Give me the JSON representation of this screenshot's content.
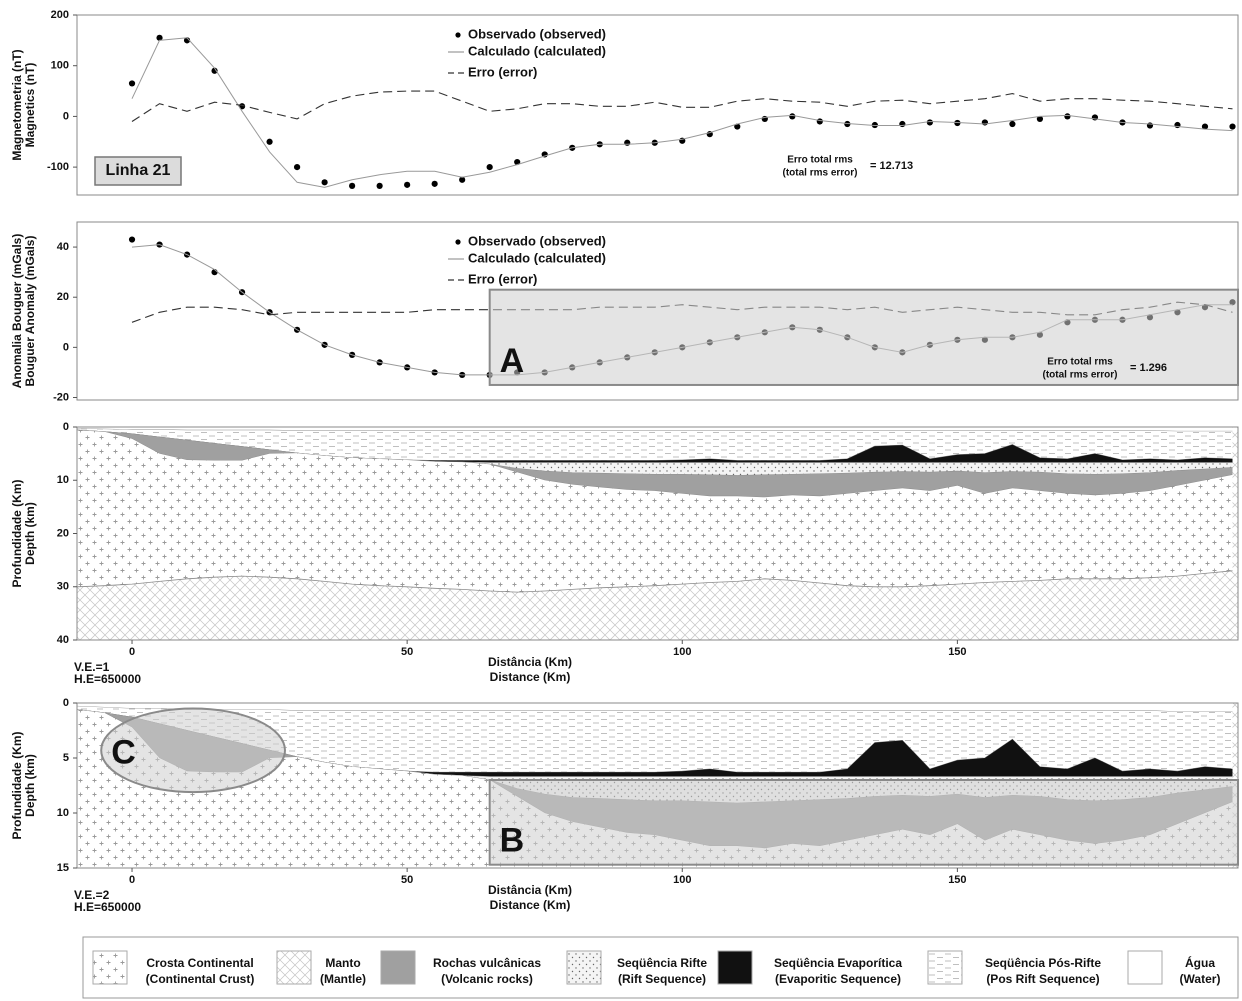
{
  "chart_data": [
    {
      "type": "line",
      "ylabel": [
        "Magnetometria (nT)",
        "Magnetics (nT)"
      ],
      "xlim": [
        -10,
        201
      ],
      "ylim": [
        -155,
        200
      ],
      "yticks": [
        -100,
        0,
        100,
        200
      ],
      "x": [
        0,
        5,
        10,
        15,
        20,
        25,
        30,
        35,
        40,
        45,
        50,
        55,
        60,
        65,
        70,
        75,
        80,
        85,
        90,
        95,
        100,
        105,
        110,
        115,
        120,
        125,
        130,
        135,
        140,
        145,
        150,
        155,
        160,
        165,
        170,
        175,
        180,
        185,
        190,
        195,
        200
      ],
      "series": [
        {
          "name": "Observado (observed)",
          "style": "dots",
          "color": "#000000",
          "values": [
            65,
            155,
            150,
            90,
            20,
            -50,
            -100,
            -130,
            -137,
            -137,
            -135,
            -133,
            -125,
            -100,
            -90,
            -75,
            -62,
            -55,
            -52,
            -52,
            -48,
            -35,
            -20,
            -5,
            0,
            -10,
            -15,
            -17,
            -15,
            -12,
            -13,
            -12,
            -15,
            -5,
            0,
            -2,
            -12,
            -18,
            -17,
            -20,
            -20
          ]
        },
        {
          "name": "Calculado (calculated)",
          "style": "solid",
          "color": "#999999",
          "values": [
            35,
            150,
            155,
            95,
            10,
            -70,
            -130,
            -140,
            -125,
            -115,
            -108,
            -108,
            -120,
            -110,
            -95,
            -78,
            -62,
            -55,
            -55,
            -52,
            -45,
            -32,
            -15,
            -2,
            2,
            -8,
            -14,
            -18,
            -18,
            -10,
            -12,
            -15,
            -8,
            0,
            2,
            -5,
            -12,
            -15,
            -20,
            -25,
            -28
          ]
        },
        {
          "name": "Erro (error)",
          "style": "dashed",
          "color": "#333333",
          "values": [
            -10,
            25,
            10,
            28,
            22,
            8,
            -5,
            25,
            40,
            48,
            50,
            50,
            30,
            10,
            15,
            25,
            25,
            20,
            20,
            28,
            18,
            18,
            30,
            35,
            30,
            28,
            20,
            30,
            32,
            25,
            30,
            35,
            45,
            30,
            35,
            35,
            32,
            30,
            25,
            20,
            15
          ]
        }
      ],
      "label_box": "Linha 21",
      "rms": {
        "lines": [
          "Erro total rms",
          "(total rms error)"
        ],
        "value": 12.713,
        "value_label": "= 12.713"
      }
    },
    {
      "type": "line",
      "ylabel": [
        "Anomalia Bouguer (mGals)",
        "Bouguer Anomaly (mGals)"
      ],
      "xlim": [
        -10,
        201
      ],
      "ylim": [
        -21,
        50
      ],
      "yticks": [
        -20,
        0,
        20,
        40
      ],
      "x": [
        0,
        5,
        10,
        15,
        20,
        25,
        30,
        35,
        40,
        45,
        50,
        55,
        60,
        65,
        70,
        75,
        80,
        85,
        90,
        95,
        100,
        105,
        110,
        115,
        120,
        125,
        130,
        135,
        140,
        145,
        150,
        155,
        160,
        165,
        170,
        175,
        180,
        185,
        190,
        195,
        200
      ],
      "series": [
        {
          "name": "Observado (observed)",
          "style": "dots",
          "color": "#000000",
          "values": [
            43,
            41,
            37,
            30,
            22,
            14,
            7,
            1,
            -3,
            -6,
            -8,
            -10,
            -11,
            -11,
            -10,
            -10,
            -8,
            -6,
            -4,
            -2,
            0,
            2,
            4,
            6,
            8,
            7,
            4,
            0,
            -2,
            1,
            3,
            3,
            4,
            5,
            10,
            11,
            11,
            12,
            14,
            16,
            18
          ]
        },
        {
          "name": "Calculado (calculated)",
          "style": "solid",
          "color": "#999999",
          "values": [
            40,
            41,
            37,
            31,
            22,
            14,
            7,
            1,
            -3,
            -6,
            -8,
            -10,
            -11,
            -11,
            -11,
            -10,
            -8,
            -6,
            -4,
            -2,
            0,
            2,
            4,
            6,
            8,
            7,
            4,
            0,
            -2,
            1,
            3,
            4,
            4,
            6,
            11,
            11,
            11,
            13,
            15,
            17,
            17
          ]
        },
        {
          "name": "Erro (error)",
          "style": "dashed",
          "color": "#333333",
          "values": [
            10,
            14,
            16,
            16,
            15,
            13,
            14,
            14,
            14,
            14,
            14,
            15,
            15,
            15,
            15,
            15,
            15,
            16,
            16,
            16,
            17,
            16,
            15,
            16,
            16,
            16,
            15,
            16,
            14,
            15,
            16,
            15,
            14,
            14,
            13,
            13,
            15,
            16,
            18,
            17,
            14
          ]
        }
      ],
      "regions": [
        {
          "label": "A",
          "shape": "box",
          "x": [
            65,
            201
          ],
          "y": [
            -15,
            23
          ]
        }
      ],
      "rms": {
        "lines": [
          "Erro total rms",
          "(total rms error)"
        ],
        "value": 1.296,
        "value_label": "= 1.296"
      }
    },
    {
      "type": "section",
      "y_inverted": true,
      "ylabel": [
        "Profundidade (Km)",
        "Depth (km)"
      ],
      "xlim": [
        -10,
        201
      ],
      "ylim": [
        0,
        40
      ],
      "yticks": [
        0,
        10,
        20,
        30,
        40
      ],
      "xticks": [
        0,
        50,
        100,
        150
      ],
      "xlabel": [
        "Distância (Km)",
        "Distance (Km)"
      ],
      "notes": [
        "V.E.=1",
        "H.E=650000"
      ]
    },
    {
      "type": "section",
      "y_inverted": true,
      "ylabel": [
        "Profundidade (Km)",
        "Depth (km)"
      ],
      "xlim": [
        -10,
        201
      ],
      "ylim": [
        0,
        15
      ],
      "yticks": [
        0,
        5,
        10,
        15
      ],
      "xticks": [
        0,
        50,
        100,
        150
      ],
      "xlabel": [
        "Distância (Km)",
        "Distance (Km)"
      ],
      "notes": [
        "V.E.=2",
        "H.E=650000"
      ],
      "regions": [
        {
          "label": "B",
          "shape": "box",
          "x": [
            65,
            201
          ],
          "y": [
            7,
            14.7
          ]
        },
        {
          "label": "C",
          "shape": "ellipse",
          "x": [
            -5.6,
            27.8
          ],
          "y": [
            0.5,
            8.1
          ]
        }
      ]
    }
  ],
  "layers": {
    "x": [
      -10,
      -5,
      0,
      5,
      10,
      15,
      20,
      25,
      30,
      35,
      40,
      45,
      50,
      55,
      60,
      65,
      70,
      75,
      80,
      85,
      90,
      95,
      100,
      105,
      110,
      115,
      120,
      125,
      130,
      135,
      140,
      145,
      150,
      155,
      160,
      165,
      170,
      175,
      180,
      185,
      190,
      195,
      200
    ],
    "items": [
      {
        "name": "Crosta Continental",
        "name_en": "(Continental Crust)",
        "pattern": "cross",
        "values": [
          30,
          29.8,
          29.5,
          29,
          28.5,
          28.2,
          28,
          28.2,
          28.5,
          29,
          29.5,
          29.8,
          30,
          30.3,
          30.5,
          30.8,
          31,
          30.8,
          30.5,
          30.2,
          30,
          29.8,
          29.5,
          29.2,
          29,
          28.5,
          28.8,
          29.3,
          29.8,
          30,
          30,
          29.8,
          29.5,
          29.2,
          29,
          28.8,
          28.5,
          28.5,
          28.5,
          28.3,
          28,
          27.5,
          27
        ]
      },
      {
        "name": "Manto",
        "name_en": "(Mantle)",
        "pattern": "hatch"
      },
      {
        "name": "Rochas vulcânicas",
        "name_en": "(Volcanic rocks)",
        "color": "#a0a0a0",
        "values": [
          0.6,
          0.9,
          2.2,
          5.0,
          6.2,
          6.3,
          6.3,
          5.0,
          4.9,
          5.4,
          5.8,
          6.0,
          6.2,
          6.5,
          6.6,
          7.0,
          8.5,
          10.0,
          10.8,
          11.3,
          11.8,
          12.0,
          12.5,
          13.0,
          13.0,
          13.2,
          12.8,
          13.0,
          12.5,
          12.0,
          11.5,
          12.0,
          11.0,
          12.5,
          11.5,
          12.0,
          12.5,
          12.8,
          12.5,
          12.0,
          11.0,
          10.0,
          9.0
        ]
      },
      {
        "name": "Seqüência Rifte",
        "name_en": "(Rift Sequence)",
        "pattern": "dots",
        "values": [
          0.6,
          0.9,
          1.3,
          1.9,
          2.5,
          3.1,
          3.7,
          4.3,
          4.9,
          5.4,
          5.8,
          6.0,
          6.2,
          6.5,
          6.6,
          7.0,
          7.8,
          8.3,
          8.6,
          8.7,
          8.8,
          8.9,
          8.9,
          9.0,
          9.1,
          9.0,
          8.9,
          8.8,
          8.7,
          8.5,
          8.4,
          8.5,
          8.3,
          8.6,
          8.4,
          8.5,
          8.8,
          8.9,
          8.8,
          8.6,
          8.2,
          7.9,
          7.6
        ]
      },
      {
        "name": "Seqüência Evaporítica",
        "name_en": "(Evaporitic Sequence)",
        "color": "#111111",
        "values": [
          0.6,
          0.9,
          1.3,
          1.9,
          2.5,
          3.1,
          3.7,
          4.3,
          4.9,
          5.4,
          5.8,
          6.0,
          6.2,
          6.5,
          6.6,
          6.7,
          6.7,
          6.7,
          6.7,
          6.7,
          6.7,
          6.7,
          6.7,
          6.7,
          6.7,
          6.7,
          6.7,
          6.7,
          6.7,
          6.7,
          6.7,
          6.7,
          6.7,
          6.7,
          6.7,
          6.7,
          6.7,
          6.7,
          6.7,
          6.7,
          6.7,
          6.7,
          6.7
        ]
      },
      {
        "name": "Seqüência Pós-Rifte",
        "name_en": "(Pos Rift Sequence)",
        "pattern": "dash",
        "values": [
          0.6,
          0.9,
          1.3,
          1.9,
          2.5,
          3.1,
          3.7,
          4.3,
          4.9,
          5.4,
          5.8,
          6.0,
          6.2,
          6.3,
          6.3,
          6.3,
          6.3,
          6.3,
          6.3,
          6.3,
          6.3,
          6.3,
          6.2,
          6.0,
          6.3,
          6.3,
          6.3,
          6.3,
          6.0,
          3.6,
          3.4,
          6.0,
          5.2,
          5.0,
          3.3,
          5.8,
          6.0,
          5.0,
          6.2,
          6.0,
          6.2,
          5.8,
          6.0
        ]
      },
      {
        "name": "Água",
        "name_en": "(Water)",
        "color": "#ffffff",
        "values": [
          0.3,
          0.4,
          0.5,
          0.5,
          0.6,
          0.6,
          0.6,
          0.6,
          0.7,
          0.7,
          0.7,
          0.7,
          0.7,
          0.7,
          0.7,
          0.7,
          0.7,
          0.7,
          0.7,
          0.7,
          0.7,
          0.7,
          0.7,
          0.7,
          0.7,
          0.7,
          0.7,
          0.7,
          0.7,
          0.7,
          0.7,
          0.7,
          0.7,
          0.7,
          0.7,
          0.7,
          0.7,
          0.7,
          0.7,
          0.7,
          0.8,
          0.8,
          0.8
        ]
      }
    ]
  }
}
